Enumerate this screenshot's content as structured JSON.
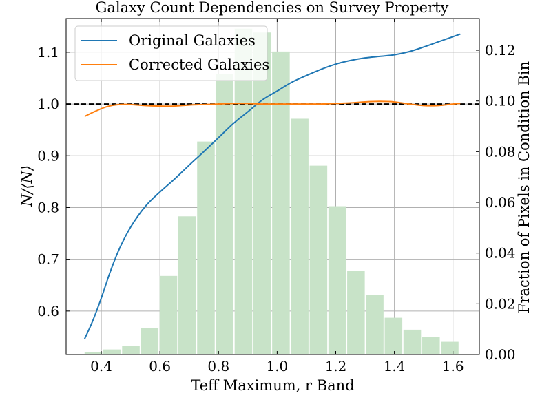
{
  "chart_data": {
    "type": "line",
    "title": "Galaxy Count Dependencies on Survey Property",
    "xlabel": "Teff Maximum, r Band",
    "ylabel": "N/⟨N⟩",
    "ylabel_right": "Fraction of Pixels in Condition Bin",
    "xlim": [
      0.28,
      1.69
    ],
    "ylim": [
      0.516,
      1.165
    ],
    "ylim_right": [
      0.0,
      0.1325
    ],
    "x_ticks": [
      "0.4",
      "0.6",
      "0.8",
      "1.0",
      "1.2",
      "1.4",
      "1.6"
    ],
    "y_ticks": [
      "0.6",
      "0.7",
      "0.8",
      "0.9",
      "1.0",
      "1.1"
    ],
    "y_ticks_right": [
      "0.00",
      "0.02",
      "0.04",
      "0.06",
      "0.08",
      "0.10",
      "0.12"
    ],
    "grid": true,
    "reference_line": {
      "y": 1.0,
      "style": "dashed",
      "color": "#000000"
    },
    "legend": {
      "position": "top-left"
    },
    "series": [
      {
        "name": "Original Galaxies",
        "color": "#1f77b4",
        "x": [
          0.343,
          0.37,
          0.4,
          0.43,
          0.46,
          0.5,
          0.55,
          0.6,
          0.65,
          0.7,
          0.75,
          0.8,
          0.85,
          0.9,
          0.95,
          1.0,
          1.05,
          1.1,
          1.15,
          1.2,
          1.25,
          1.3,
          1.35,
          1.4,
          1.45,
          1.5,
          1.55,
          1.6,
          1.625
        ],
        "y": [
          0.546,
          0.58,
          0.625,
          0.675,
          0.718,
          0.762,
          0.802,
          0.83,
          0.855,
          0.882,
          0.908,
          0.935,
          0.962,
          0.985,
          1.008,
          1.025,
          1.042,
          1.055,
          1.067,
          1.077,
          1.084,
          1.089,
          1.092,
          1.095,
          1.101,
          1.11,
          1.12,
          1.13,
          1.135
        ]
      },
      {
        "name": "Corrected Galaxies",
        "color": "#ff7f0e",
        "x": [
          0.343,
          0.38,
          0.42,
          0.46,
          0.5,
          0.55,
          0.6,
          0.65,
          0.7,
          0.75,
          0.8,
          0.85,
          0.9,
          0.95,
          1.0,
          1.05,
          1.1,
          1.15,
          1.2,
          1.25,
          1.3,
          1.35,
          1.4,
          1.45,
          1.5,
          1.55,
          1.6,
          1.625
        ],
        "y": [
          0.976,
          0.986,
          0.995,
          0.999,
          0.999,
          0.997,
          0.996,
          0.996,
          0.998,
          0.999,
          1.0,
          1.001,
          1.001,
          1.0,
          1.0,
          1.0,
          1.0,
          1.0,
          1.001,
          1.002,
          1.004,
          1.005,
          1.004,
          1.0,
          0.997,
          0.997,
          1.0,
          1.001
        ]
      }
    ],
    "histogram": {
      "axis": "right",
      "color": "#c8e3c8",
      "bins": [
        {
          "x0": 0.343,
          "x1": 0.403,
          "value": 0.001
        },
        {
          "x0": 0.407,
          "x1": 0.467,
          "value": 0.002
        },
        {
          "x0": 0.471,
          "x1": 0.531,
          "value": 0.0035
        },
        {
          "x0": 0.535,
          "x1": 0.595,
          "value": 0.0105
        },
        {
          "x0": 0.599,
          "x1": 0.659,
          "value": 0.031
        },
        {
          "x0": 0.663,
          "x1": 0.723,
          "value": 0.0545
        },
        {
          "x0": 0.727,
          "x1": 0.787,
          "value": 0.084
        },
        {
          "x0": 0.791,
          "x1": 0.851,
          "value": 0.1105
        },
        {
          "x0": 0.855,
          "x1": 0.915,
          "value": 0.1285
        },
        {
          "x0": 0.919,
          "x1": 0.979,
          "value": 0.127
        },
        {
          "x0": 0.983,
          "x1": 1.043,
          "value": 0.1195
        },
        {
          "x0": 1.047,
          "x1": 1.107,
          "value": 0.093
        },
        {
          "x0": 1.111,
          "x1": 1.171,
          "value": 0.0745
        },
        {
          "x0": 1.175,
          "x1": 1.235,
          "value": 0.0585
        },
        {
          "x0": 1.239,
          "x1": 1.299,
          "value": 0.033
        },
        {
          "x0": 1.303,
          "x1": 1.363,
          "value": 0.0235
        },
        {
          "x0": 1.367,
          "x1": 1.427,
          "value": 0.0145
        },
        {
          "x0": 1.431,
          "x1": 1.491,
          "value": 0.0098
        },
        {
          "x0": 1.495,
          "x1": 1.555,
          "value": 0.0068
        },
        {
          "x0": 1.559,
          "x1": 1.619,
          "value": 0.005
        }
      ]
    }
  }
}
